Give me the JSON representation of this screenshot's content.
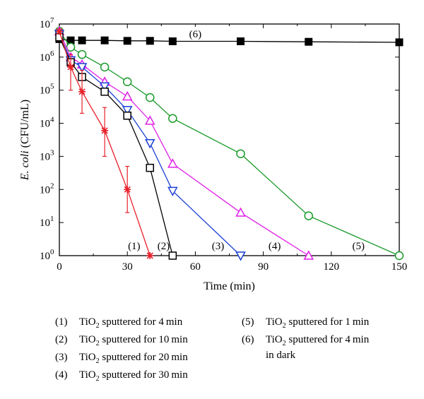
{
  "chart_data": {
    "type": "line",
    "xlabel": "Time (min)",
    "ylabel_italic": "E. coli",
    "ylabel_unit": " (CFU/mL)",
    "xlim": [
      0,
      150
    ],
    "ylim": [
      1,
      10000000
    ],
    "y_scale": "log",
    "x_ticks": [
      0,
      30,
      60,
      90,
      120,
      150
    ],
    "y_tick_exponents": [
      0,
      1,
      2,
      3,
      4,
      5,
      6,
      7
    ],
    "y_tick_base": "10",
    "series": [
      {
        "label": "(1)",
        "marker": "star",
        "color": "#e8202a",
        "x": [
          0,
          5,
          10,
          20,
          30,
          40
        ],
        "y": [
          6000000,
          500000,
          90000,
          6000,
          100,
          1
        ],
        "err_lo": [
          null,
          100000,
          20000,
          1000,
          20,
          null
        ],
        "err_hi": [
          null,
          1200000,
          400000,
          30000,
          500,
          null
        ]
      },
      {
        "label": "(2)",
        "marker": "square",
        "color": "#000000",
        "x": [
          0,
          5,
          10,
          20,
          30,
          40,
          50
        ],
        "y": [
          4000000,
          700000,
          250000,
          90000,
          17000,
          450,
          1
        ]
      },
      {
        "label": "(3)",
        "marker": "triangle-down",
        "color": "#1a3fd6",
        "x": [
          0,
          5,
          10,
          20,
          30,
          40,
          50,
          80
        ],
        "y": [
          5000000,
          800000,
          500000,
          130000,
          25000,
          2500,
          90,
          1
        ]
      },
      {
        "label": "(4)",
        "marker": "triangle-up",
        "color": "#e020e8",
        "x": [
          0,
          5,
          10,
          20,
          30,
          40,
          50,
          80,
          110
        ],
        "y": [
          6000000,
          1000000,
          600000,
          180000,
          65000,
          12000,
          600,
          20,
          1
        ]
      },
      {
        "label": "(5)",
        "marker": "circle",
        "color": "#1a9a2a",
        "x": [
          0,
          5,
          10,
          20,
          30,
          40,
          50,
          80,
          110,
          150
        ],
        "y": [
          6000000,
          2000000,
          1200000,
          500000,
          180000,
          60000,
          14000,
          1200,
          16,
          1
        ]
      },
      {
        "label": "(6)",
        "marker": "filled-square",
        "color": "#000000",
        "x": [
          0,
          5,
          10,
          20,
          30,
          40,
          50,
          80,
          110,
          150
        ],
        "y": [
          3500000,
          3200000,
          3200000,
          3200000,
          3100000,
          3100000,
          3000000,
          3000000,
          2900000,
          2800000
        ]
      }
    ],
    "annotations": [
      {
        "text": "(1)",
        "x": 33,
        "y": 2
      },
      {
        "text": "(2)",
        "x": 46,
        "y": 2
      },
      {
        "text": "(3)",
        "x": 70,
        "y": 2
      },
      {
        "text": "(4)",
        "x": 95,
        "y": 2
      },
      {
        "text": "(5)",
        "x": 132,
        "y": 2
      },
      {
        "text": "(6)",
        "x": 60,
        "y": 5000000
      }
    ]
  },
  "legend": [
    {
      "num": "(1)",
      "pre": "TiO",
      "sub": "2",
      "post": " sputtered for 4 min"
    },
    {
      "num": "(2)",
      "pre": "TiO",
      "sub": "2",
      "post": " sputtered for 10 min"
    },
    {
      "num": "(3)",
      "pre": "TiO",
      "sub": "2",
      "post": " sputtered for 20 min"
    },
    {
      "num": "(4)",
      "pre": "TiO",
      "sub": "2",
      "post": " sputtered for 30 min"
    },
    {
      "num": "(5)",
      "pre": "TiO",
      "sub": "2",
      "post": " sputtered for 1 min"
    },
    {
      "num": "(6)",
      "pre": "TiO",
      "sub": "2",
      "post": " sputtered for 4 min",
      "line2": "in dark"
    }
  ]
}
